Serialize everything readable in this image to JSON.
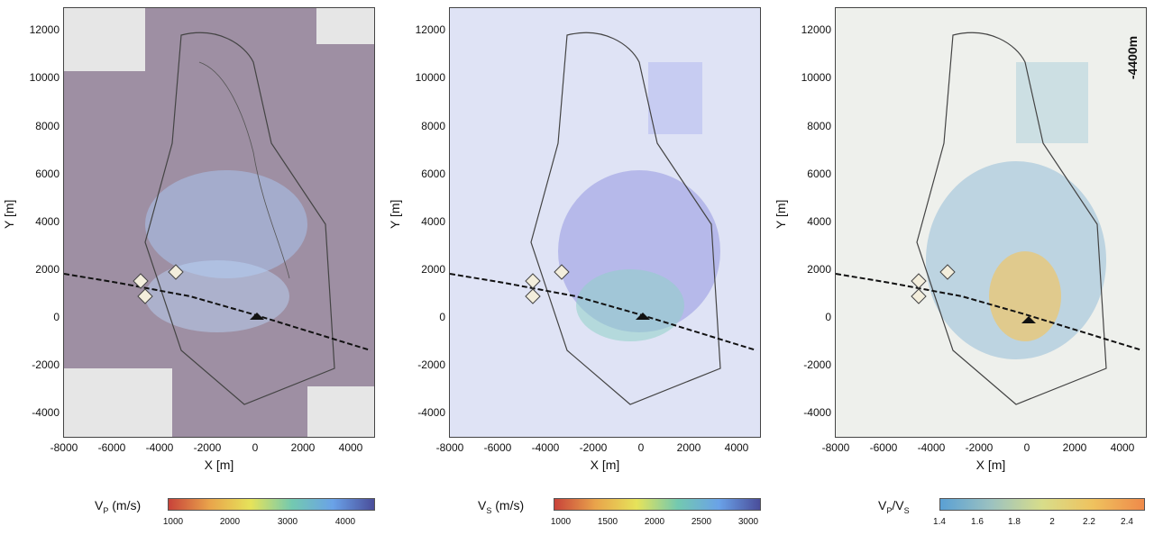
{
  "chart_data": [
    {
      "type": "heatmap",
      "panel": "Vp",
      "xlabel": "X [m]",
      "ylabel": "Y [m]",
      "xlim": [
        -8000,
        5000
      ],
      "ylim": [
        -5000,
        13000
      ],
      "xticks": [
        "-8000",
        "-6000",
        "-4000",
        "-2000",
        "0",
        "2000",
        "4000"
      ],
      "yticks": [
        "12000",
        "10000",
        "8000",
        "6000",
        "4000",
        "2000",
        "0",
        "-2000",
        "-4000"
      ],
      "colorbar": {
        "label_main": "V",
        "label_sub": "P",
        "label_unit": " (m/s)",
        "ticks": [
          "1000",
          "2000",
          "3000",
          "4000"
        ],
        "range": [
          900,
          4500
        ]
      },
      "background": "#9e8fa3"
    },
    {
      "type": "heatmap",
      "panel": "Vs",
      "xlabel": "X [m]",
      "ylabel": "Y [m]",
      "xlim": [
        -8000,
        5000
      ],
      "ylim": [
        -5000,
        13000
      ],
      "xticks": [
        "-8000",
        "-6000",
        "-4000",
        "-2000",
        "0",
        "2000",
        "4000"
      ],
      "yticks": [
        "12000",
        "10000",
        "8000",
        "6000",
        "4000",
        "2000",
        "0",
        "-2000",
        "-4000"
      ],
      "colorbar": {
        "label_main": "V",
        "label_sub": "S",
        "label_unit": " (m/s)",
        "ticks": [
          "1000",
          "1500",
          "2000",
          "2500",
          "3000"
        ],
        "range": [
          900,
          3100
        ]
      },
      "background": "#dfe3f5"
    },
    {
      "type": "heatmap",
      "panel": "Vp/Vs",
      "xlabel": "X [m]",
      "ylabel": "Y [m]",
      "xlim": [
        -8000,
        5000
      ],
      "ylim": [
        -5000,
        13000
      ],
      "xticks": [
        "-8000",
        "-6000",
        "-4000",
        "-2000",
        "0",
        "2000",
        "4000"
      ],
      "yticks": [
        "12000",
        "10000",
        "8000",
        "6000",
        "4000",
        "2000",
        "0",
        "-2000",
        "-4000"
      ],
      "colorbar": {
        "label_main": "V",
        "label_sub": "P",
        "label_unit": "/V",
        "label_sub2": "S",
        "ticks": [
          "1.4",
          "1.6",
          "1.8",
          "2",
          "2.2",
          "2.4"
        ],
        "range": [
          1.4,
          2.5
        ]
      },
      "background": "#eef0ec",
      "annotation": "-4400m"
    }
  ],
  "colors": {
    "vp_bg": "#9e8fa3",
    "vs_bg": "#dfe3f5",
    "ratio_bg": "#eef0ec",
    "contour": "#444444"
  }
}
